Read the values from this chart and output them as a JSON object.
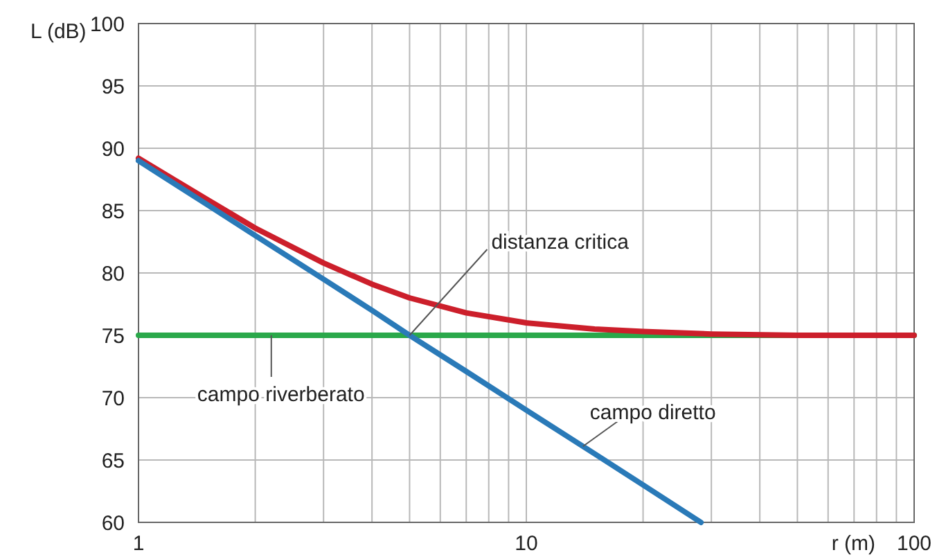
{
  "chart_data": {
    "type": "line",
    "xlabel": "r (m)",
    "ylabel": "L (dB)",
    "log": "x",
    "grid": true,
    "marker": "none",
    "line_style": "solid",
    "xlim": [
      1,
      100
    ],
    "ylim": [
      60,
      100
    ],
    "xticks": [
      1,
      {
        "value": 2,
        "label": null
      },
      {
        "value": 3,
        "label": null
      },
      {
        "value": 4,
        "label": null
      },
      {
        "value": 5,
        "label": null
      },
      {
        "value": 6,
        "label": null
      },
      {
        "value": 7,
        "label": null
      },
      {
        "value": 8,
        "label": null
      },
      {
        "value": 9,
        "label": null
      },
      10,
      {
        "value": 20,
        "label": null
      },
      {
        "value": 30,
        "label": null
      },
      {
        "value": 40,
        "label": null
      },
      {
        "value": 50,
        "label": null
      },
      {
        "value": 60,
        "label": null
      },
      {
        "value": 70,
        "label": null
      },
      {
        "value": 80,
        "label": null
      },
      {
        "value": 90,
        "label": null
      },
      100
    ],
    "yticks": [
      60,
      65,
      70,
      75,
      80,
      85,
      90,
      95,
      100
    ],
    "series": [
      {
        "color": "#2aa84a",
        "x": [
          1,
          100
        ],
        "values": [
          75,
          75
        ]
      },
      {
        "color": "#cc1f2b",
        "x": [
          1,
          1.5,
          2,
          3,
          4,
          5,
          7,
          10,
          15,
          20,
          30,
          50,
          100
        ],
        "values": [
          89.2,
          85.9,
          83.6,
          80.8,
          79.1,
          78.0,
          76.8,
          76.0,
          75.5,
          75.3,
          75.1,
          75.0,
          75.0
        ]
      },
      {
        "color": "#2a7ab8",
        "x": [
          1,
          1.5,
          2,
          3,
          4,
          5,
          7,
          10,
          15,
          20,
          28.2
        ],
        "values": [
          89,
          85.5,
          83,
          79.5,
          77,
          75,
          72.1,
          69,
          65.5,
          63,
          60
        ]
      }
    ],
    "annotations": [
      {
        "text": "distanza critica",
        "x": 5,
        "y": 75
      },
      {
        "text": "campo riverberato",
        "x": 2.2,
        "y": 75
      },
      {
        "text": "campo diretto",
        "x": 14,
        "y": 66.1
      }
    ]
  }
}
